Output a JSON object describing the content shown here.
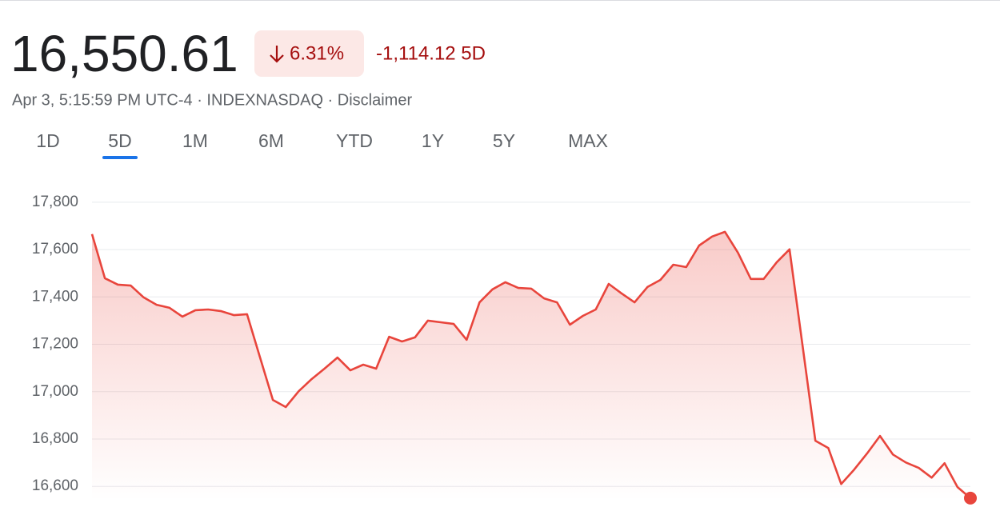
{
  "header": {
    "price": "16,550.61",
    "change_pct": "6.31%",
    "change_abs": "-1,114.12 5D",
    "meta": "Apr 3, 5:15:59 PM UTC-4 · INDEXNASDAQ · Disclaimer"
  },
  "tabs": [
    "1D",
    "5D",
    "1M",
    "6M",
    "YTD",
    "1Y",
    "5Y",
    "MAX"
  ],
  "selected_tab": 1,
  "chart_data": {
    "type": "line",
    "color": "#e8453c",
    "grid": true,
    "values": [
      17665,
      17479,
      17452,
      17448,
      17398,
      17367,
      17354,
      17317,
      17344,
      17347,
      17340,
      17323,
      17327,
      17146,
      16965,
      16935,
      17002,
      17053,
      17097,
      17144,
      17090,
      17114,
      17097,
      17232,
      17212,
      17229,
      17300,
      17293,
      17286,
      17219,
      17377,
      17432,
      17462,
      17438,
      17435,
      17394,
      17377,
      17283,
      17320,
      17347,
      17455,
      17415,
      17377,
      17442,
      17472,
      17536,
      17526,
      17617,
      17655,
      17675,
      17587,
      17476,
      17476,
      17546,
      17601,
      17197,
      16793,
      16762,
      16610,
      16671,
      16739,
      16813,
      16735,
      16701,
      16678,
      16637,
      16698,
      16597,
      16550.61
    ],
    "ylim": [
      16540,
      17840
    ],
    "yticks": [
      {
        "value": 16600,
        "label": "16,600"
      },
      {
        "value": 16800,
        "label": "16,800"
      },
      {
        "value": 17000,
        "label": "17,000"
      },
      {
        "value": 17200,
        "label": "17,200"
      },
      {
        "value": 17400,
        "label": "17,400"
      },
      {
        "value": 17600,
        "label": "17,600"
      },
      {
        "value": 17800,
        "label": "17,800"
      }
    ]
  }
}
